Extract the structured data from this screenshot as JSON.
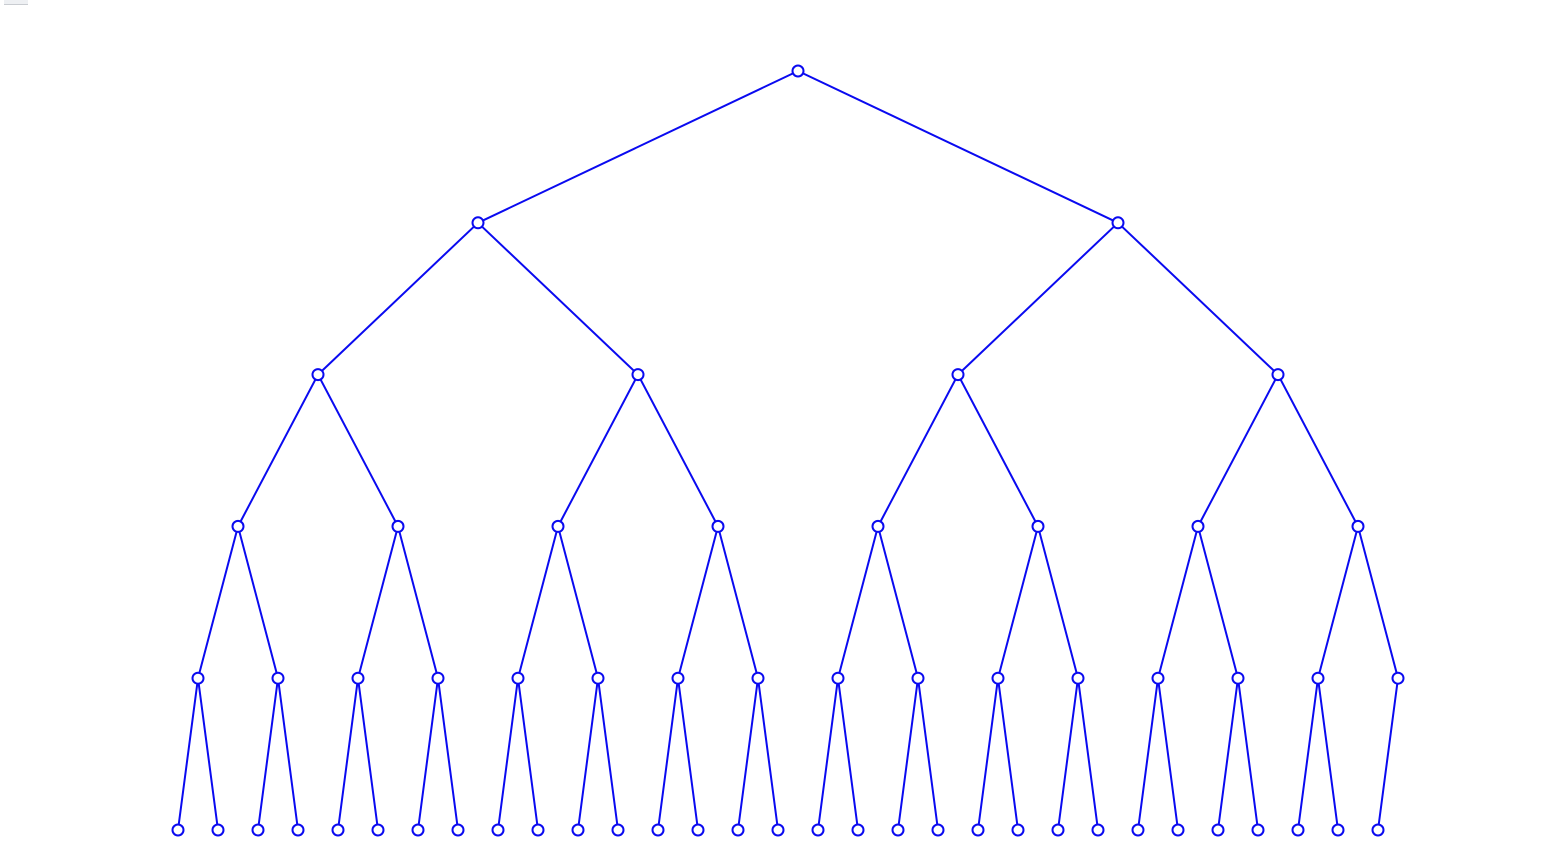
{
  "diagram": {
    "type": "binary-tree",
    "orientation": "top-down",
    "levels": 6,
    "node_shape": "circle-outline",
    "colors": {
      "edge": "#0a0af0",
      "node_stroke": "#0a0af0",
      "node_fill": "#ffffff",
      "background": "#ffffff"
    },
    "level_node_counts": [
      1,
      2,
      4,
      8,
      16,
      31
    ],
    "root_position": 15.5,
    "nodes": [
      {
        "id": 0,
        "level": 0,
        "pos": 15.5,
        "parent": null
      },
      {
        "id": 1,
        "level": 1,
        "pos": 7.5,
        "parent": 0
      },
      {
        "id": 2,
        "level": 1,
        "pos": 23.5,
        "parent": 0
      },
      {
        "id": 3,
        "level": 2,
        "pos": 3.5,
        "parent": 1
      },
      {
        "id": 4,
        "level": 2,
        "pos": 11.5,
        "parent": 1
      },
      {
        "id": 5,
        "level": 2,
        "pos": 19.5,
        "parent": 2
      },
      {
        "id": 6,
        "level": 2,
        "pos": 27.5,
        "parent": 2
      },
      {
        "id": 7,
        "level": 3,
        "pos": 1.5,
        "parent": 3
      },
      {
        "id": 8,
        "level": 3,
        "pos": 5.5,
        "parent": 3
      },
      {
        "id": 9,
        "level": 3,
        "pos": 9.5,
        "parent": 4
      },
      {
        "id": 10,
        "level": 3,
        "pos": 13.5,
        "parent": 4
      },
      {
        "id": 11,
        "level": 3,
        "pos": 17.5,
        "parent": 5
      },
      {
        "id": 12,
        "level": 3,
        "pos": 21.5,
        "parent": 5
      },
      {
        "id": 13,
        "level": 3,
        "pos": 25.5,
        "parent": 6
      },
      {
        "id": 14,
        "level": 3,
        "pos": 29.5,
        "parent": 6
      },
      {
        "id": 15,
        "level": 4,
        "pos": 0.5,
        "parent": 7
      },
      {
        "id": 16,
        "level": 4,
        "pos": 2.5,
        "parent": 7
      },
      {
        "id": 17,
        "level": 4,
        "pos": 4.5,
        "parent": 8
      },
      {
        "id": 18,
        "level": 4,
        "pos": 6.5,
        "parent": 8
      },
      {
        "id": 19,
        "level": 4,
        "pos": 8.5,
        "parent": 9
      },
      {
        "id": 20,
        "level": 4,
        "pos": 10.5,
        "parent": 9
      },
      {
        "id": 21,
        "level": 4,
        "pos": 12.5,
        "parent": 10
      },
      {
        "id": 22,
        "level": 4,
        "pos": 14.5,
        "parent": 10
      },
      {
        "id": 23,
        "level": 4,
        "pos": 16.5,
        "parent": 11
      },
      {
        "id": 24,
        "level": 4,
        "pos": 18.5,
        "parent": 11
      },
      {
        "id": 25,
        "level": 4,
        "pos": 20.5,
        "parent": 12
      },
      {
        "id": 26,
        "level": 4,
        "pos": 22.5,
        "parent": 12
      },
      {
        "id": 27,
        "level": 4,
        "pos": 24.5,
        "parent": 13
      },
      {
        "id": 28,
        "level": 4,
        "pos": 26.5,
        "parent": 13
      },
      {
        "id": 29,
        "level": 4,
        "pos": 28.5,
        "parent": 14
      },
      {
        "id": 30,
        "level": 4,
        "pos": 30.5,
        "parent": 14
      },
      {
        "id": 31,
        "level": 5,
        "pos": 0,
        "parent": 15
      },
      {
        "id": 32,
        "level": 5,
        "pos": 1,
        "parent": 15
      },
      {
        "id": 33,
        "level": 5,
        "pos": 2,
        "parent": 16
      },
      {
        "id": 34,
        "level": 5,
        "pos": 3,
        "parent": 16
      },
      {
        "id": 35,
        "level": 5,
        "pos": 4,
        "parent": 17
      },
      {
        "id": 36,
        "level": 5,
        "pos": 5,
        "parent": 17
      },
      {
        "id": 37,
        "level": 5,
        "pos": 6,
        "parent": 18
      },
      {
        "id": 38,
        "level": 5,
        "pos": 7,
        "parent": 18
      },
      {
        "id": 39,
        "level": 5,
        "pos": 8,
        "parent": 19
      },
      {
        "id": 40,
        "level": 5,
        "pos": 9,
        "parent": 19
      },
      {
        "id": 41,
        "level": 5,
        "pos": 10,
        "parent": 20
      },
      {
        "id": 42,
        "level": 5,
        "pos": 11,
        "parent": 20
      },
      {
        "id": 43,
        "level": 5,
        "pos": 12,
        "parent": 21
      },
      {
        "id": 44,
        "level": 5,
        "pos": 13,
        "parent": 21
      },
      {
        "id": 45,
        "level": 5,
        "pos": 14,
        "parent": 22
      },
      {
        "id": 46,
        "level": 5,
        "pos": 15,
        "parent": 22
      },
      {
        "id": 47,
        "level": 5,
        "pos": 16,
        "parent": 23
      },
      {
        "id": 48,
        "level": 5,
        "pos": 17,
        "parent": 23
      },
      {
        "id": 49,
        "level": 5,
        "pos": 18,
        "parent": 24
      },
      {
        "id": 50,
        "level": 5,
        "pos": 19,
        "parent": 24
      },
      {
        "id": 51,
        "level": 5,
        "pos": 20,
        "parent": 25
      },
      {
        "id": 52,
        "level": 5,
        "pos": 21,
        "parent": 25
      },
      {
        "id": 53,
        "level": 5,
        "pos": 22,
        "parent": 26
      },
      {
        "id": 54,
        "level": 5,
        "pos": 23,
        "parent": 26
      },
      {
        "id": 55,
        "level": 5,
        "pos": 24,
        "parent": 27
      },
      {
        "id": 56,
        "level": 5,
        "pos": 25,
        "parent": 27
      },
      {
        "id": 57,
        "level": 5,
        "pos": 26,
        "parent": 28
      },
      {
        "id": 58,
        "level": 5,
        "pos": 27,
        "parent": 28
      },
      {
        "id": 59,
        "level": 5,
        "pos": 28,
        "parent": 29
      },
      {
        "id": 60,
        "level": 5,
        "pos": 29,
        "parent": 29
      },
      {
        "id": 61,
        "level": 5,
        "pos": 30,
        "parent": 30
      }
    ]
  }
}
